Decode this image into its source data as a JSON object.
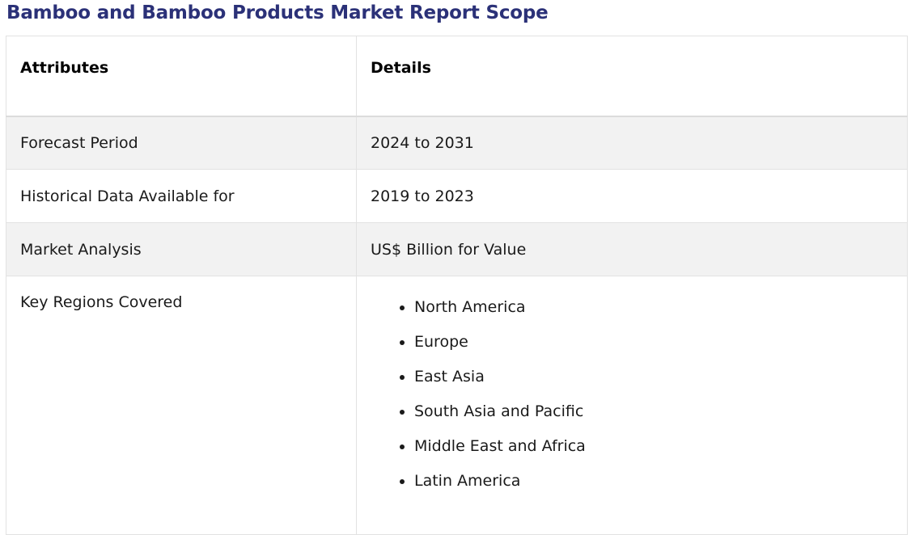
{
  "title": "Bamboo and Bamboo Products Market Report Scope",
  "table": {
    "headers": [
      "Attributes",
      "Details"
    ],
    "rows": [
      {
        "attribute": "Forecast Period",
        "detail": "2024 to 2031"
      },
      {
        "attribute": "Historical Data Available for",
        "detail": "2019 to 2023"
      },
      {
        "attribute": "Market Analysis",
        "detail": "US$ Billion for Value"
      }
    ],
    "regions": {
      "attribute": "Key Regions Covered",
      "items": [
        "North America",
        "Europe",
        "East Asia",
        "South Asia and Pacific",
        "Middle East and Africa",
        "Latin America"
      ]
    }
  }
}
